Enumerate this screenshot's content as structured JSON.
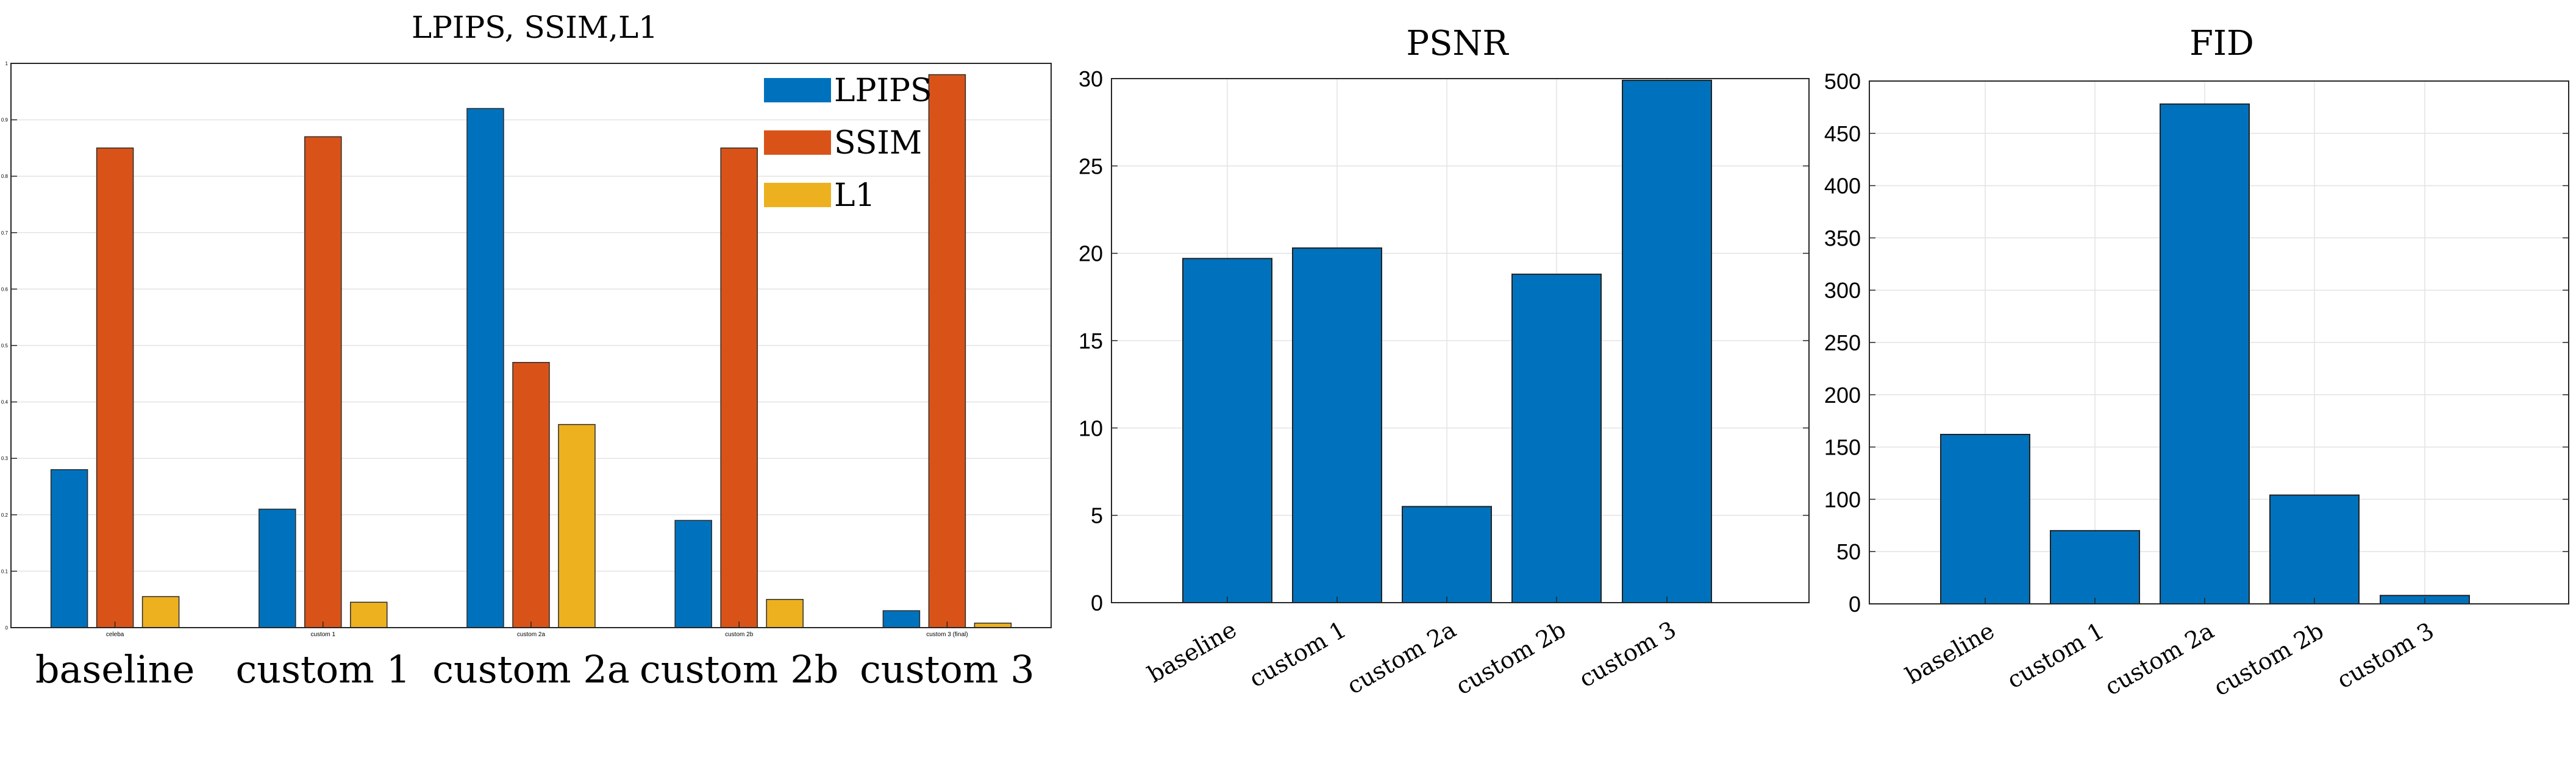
{
  "colors": {
    "lpips": "#0072BD",
    "ssim": "#D95319",
    "l1": "#EDB120",
    "bar": "#0072BD"
  },
  "chart_data": [
    {
      "type": "bar",
      "title": "LPIPS, SSIM,L1",
      "categories": [
        "baseline",
        "custom 1",
        "custom 2a",
        "custom 2b",
        "custom 3"
      ],
      "small_tick_labels": [
        "celeba",
        "custom 1",
        "custom 2a",
        "custom 2b",
        "custom 3 (final)"
      ],
      "series": [
        {
          "name": "LPIPS",
          "values": [
            0.28,
            0.21,
            0.92,
            0.19,
            0.03
          ]
        },
        {
          "name": "SSIM",
          "values": [
            0.85,
            0.87,
            0.47,
            0.85,
            0.98
          ]
        },
        {
          "name": "L1",
          "values": [
            0.055,
            0.045,
            0.36,
            0.05,
            0.008
          ]
        }
      ],
      "ylim": [
        0,
        1
      ],
      "yticks": [
        "0",
        "0.1",
        "0.2",
        "0.3",
        "0.4",
        "0.5",
        "0.6",
        "0.7",
        "0.8",
        "0.9",
        "1"
      ],
      "legend": "top-right",
      "grid": true
    },
    {
      "type": "bar",
      "title": "PSNR",
      "categories": [
        "baseline",
        "custom 1",
        "custom 2a",
        "custom 2b",
        "custom 3"
      ],
      "values": [
        19.7,
        20.3,
        5.5,
        18.8,
        29.9
      ],
      "ylim": [
        0,
        30
      ],
      "yticks": [
        "0",
        "5",
        "10",
        "15",
        "20",
        "25",
        "30"
      ],
      "grid": true
    },
    {
      "type": "bar",
      "title": "FID",
      "categories": [
        "baseline",
        "custom 1",
        "custom 2a",
        "custom 2b",
        "custom 3"
      ],
      "values": [
        162,
        70,
        478,
        104,
        8
      ],
      "ylim": [
        0,
        500
      ],
      "yticks": [
        "0",
        "50",
        "100",
        "150",
        "200",
        "250",
        "300",
        "350",
        "400",
        "450",
        "500"
      ],
      "grid": true
    }
  ]
}
